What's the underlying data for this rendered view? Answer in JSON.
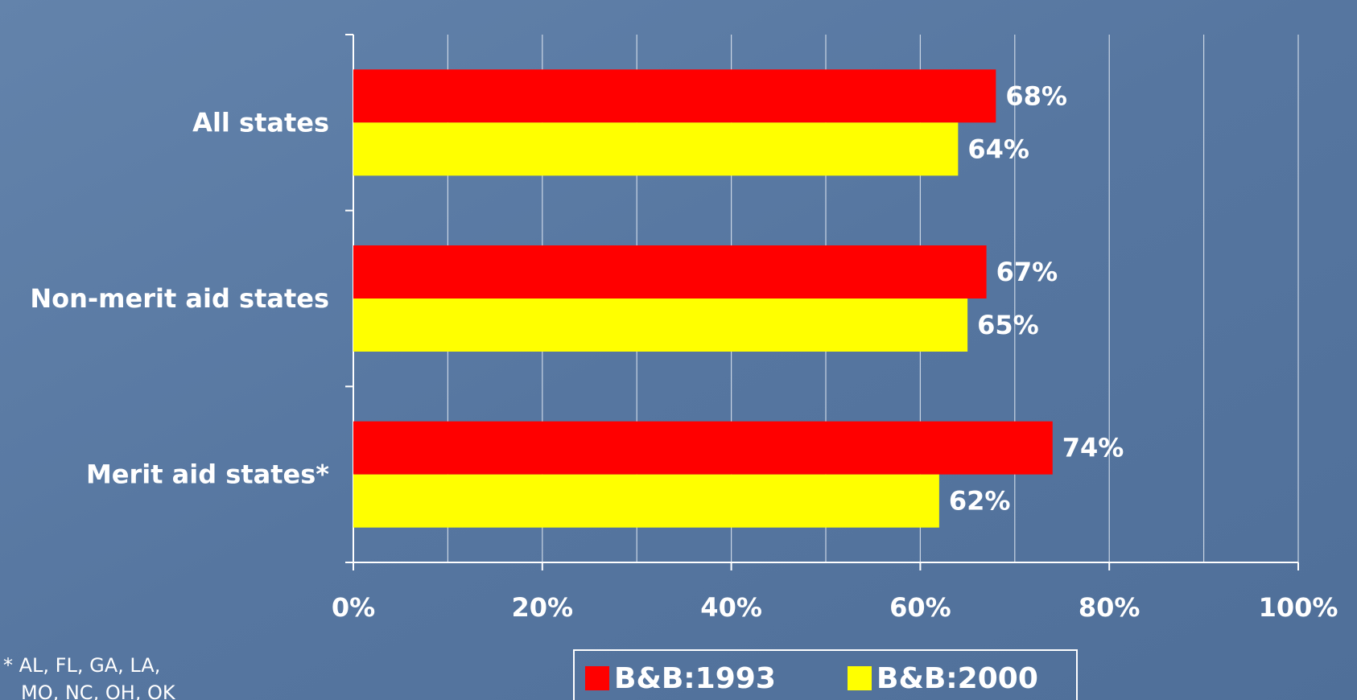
{
  "chart_data": {
    "type": "hbar",
    "categories": [
      "All states",
      "Non-merit aid states",
      "Merit aid states*"
    ],
    "series": [
      {
        "name": "B&B:1993",
        "color": "#ff0000",
        "values": [
          68,
          67,
          74
        ],
        "value_labels": [
          "68%",
          "67%",
          "74%"
        ]
      },
      {
        "name": "B&B:2000",
        "color": "#ffff00",
        "values": [
          64,
          65,
          62
        ],
        "value_labels": [
          "64%",
          "65%",
          "62%"
        ]
      }
    ],
    "xlim": [
      0,
      100
    ],
    "xticks": [
      {
        "value": 0,
        "label": "0%"
      },
      {
        "value": 20,
        "label": "20%"
      },
      {
        "value": 40,
        "label": "40%"
      },
      {
        "value": 60,
        "label": "60%"
      },
      {
        "value": 80,
        "label": "80%"
      },
      {
        "value": 100,
        "label": "100%"
      }
    ],
    "minor_xticks": [
      10,
      30,
      50,
      70,
      90
    ],
    "grid": true,
    "legend": "bottom",
    "annotations": [
      "* AL, FL, GA, LA,",
      "MO, NC, OH, OK"
    ]
  }
}
